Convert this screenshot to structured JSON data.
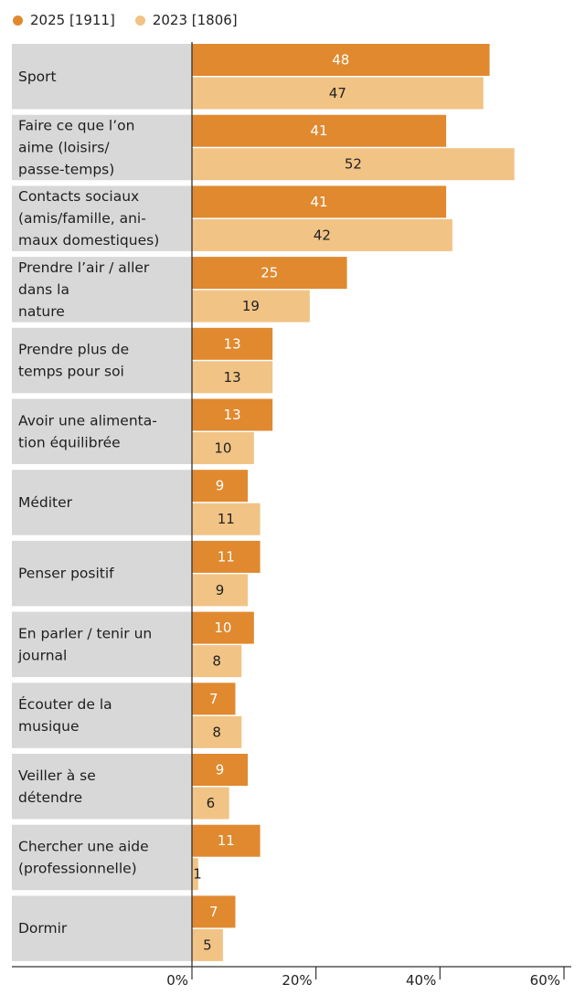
{
  "chart_data": {
    "type": "bar",
    "orientation": "horizontal",
    "categories": [
      [
        "Sport"
      ],
      [
        "Faire ce que l’on",
        "aime (loisirs/",
        "passe-temps)"
      ],
      [
        "Contacts sociaux",
        "(amis/famille, ani-",
        "maux domestiques)"
      ],
      [
        "Prendre l’air / aller",
        "dans la",
        "nature"
      ],
      [
        "Prendre plus de",
        "temps pour soi"
      ],
      [
        "Avoir une alimenta-",
        "tion équilibrée"
      ],
      [
        "Méditer"
      ],
      [
        "Penser positif"
      ],
      [
        "En parler / tenir un",
        "journal"
      ],
      [
        "Écouter de la",
        "musique"
      ],
      [
        "Veiller à se",
        "détendre"
      ],
      [
        "Chercher une aide",
        "(professionnelle)"
      ],
      [
        "Dormir"
      ]
    ],
    "series": [
      {
        "name": "2025 [1911]",
        "color": "#e0892f",
        "label_color": "#ffffff",
        "values": [
          48,
          41,
          41,
          25,
          13,
          13,
          9,
          11,
          10,
          7,
          9,
          11,
          7
        ]
      },
      {
        "name": "2023 [1806]",
        "color": "#f1c385",
        "label_color": "#222222",
        "values": [
          47,
          52,
          42,
          19,
          13,
          10,
          11,
          9,
          8,
          8,
          6,
          1,
          5
        ]
      }
    ],
    "xlim": [
      0,
      60
    ],
    "xticks": [
      {
        "value": 0,
        "label": "0%"
      },
      {
        "value": 20,
        "label": "20%"
      },
      {
        "value": 40,
        "label": "40%"
      },
      {
        "value": 60,
        "label": "60%"
      }
    ],
    "category_band_color": "#d8d8d9",
    "legend_position": "top-left",
    "grid": false
  }
}
